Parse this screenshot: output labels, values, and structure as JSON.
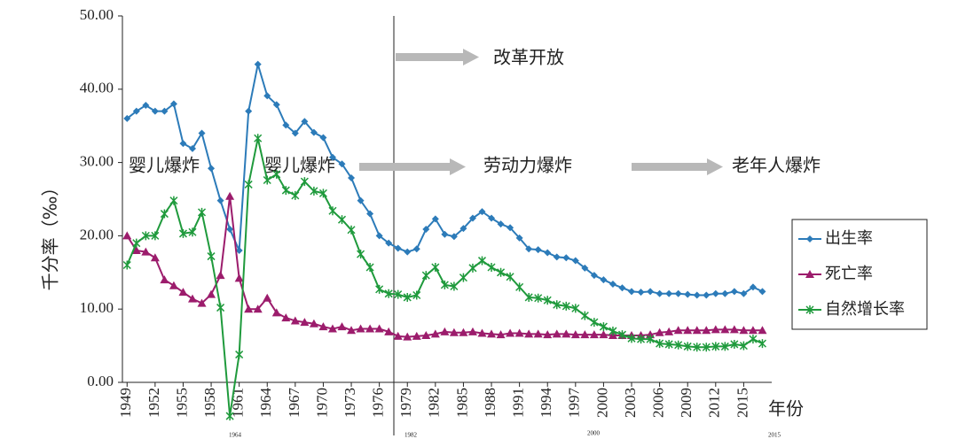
{
  "chart_data": {
    "type": "line",
    "y_label": "千分率（‰）",
    "x_label": "年份",
    "x": [
      1949,
      1950,
      1951,
      1952,
      1953,
      1954,
      1955,
      1956,
      1957,
      1958,
      1959,
      1960,
      1961,
      1962,
      1963,
      1964,
      1965,
      1966,
      1967,
      1968,
      1969,
      1970,
      1971,
      1972,
      1973,
      1974,
      1975,
      1976,
      1977,
      1978,
      1979,
      1980,
      1981,
      1982,
      1983,
      1984,
      1985,
      1986,
      1987,
      1988,
      1989,
      1990,
      1991,
      1992,
      1993,
      1994,
      1995,
      1996,
      1997,
      1998,
      1999,
      2000,
      2001,
      2002,
      2003,
      2004,
      2005,
      2006,
      2007,
      2008,
      2009,
      2010,
      2011,
      2012,
      2013,
      2014,
      2015,
      2016,
      2017
    ],
    "series": [
      {
        "name": "出生率",
        "color": "#2c7bb9",
        "marker": "diamond",
        "values": [
          36.0,
          37.0,
          37.8,
          37.0,
          37.0,
          38.0,
          32.6,
          31.9,
          34.0,
          29.2,
          24.8,
          20.9,
          18.0,
          37.0,
          43.4,
          39.1,
          37.9,
          35.1,
          34.0,
          35.6,
          34.1,
          33.4,
          30.7,
          29.8,
          27.9,
          24.8,
          23.0,
          20.0,
          19.0,
          18.3,
          17.8,
          18.2,
          20.9,
          22.3,
          20.2,
          19.9,
          21.0,
          22.4,
          23.3,
          22.4,
          21.6,
          21.1,
          19.7,
          18.2,
          18.1,
          17.7,
          17.1,
          17.0,
          16.6,
          15.6,
          14.6,
          14.0,
          13.4,
          12.9,
          12.4,
          12.3,
          12.4,
          12.1,
          12.1,
          12.1,
          12.0,
          11.9,
          11.9,
          12.1,
          12.1,
          12.4,
          12.1,
          13.0,
          12.4
        ]
      },
      {
        "name": "死亡率",
        "color": "#9c1c6c",
        "marker": "triangle",
        "values": [
          20.0,
          18.0,
          17.8,
          17.0,
          14.0,
          13.2,
          12.3,
          11.4,
          10.8,
          12.0,
          14.6,
          25.4,
          14.2,
          10.0,
          10.0,
          11.5,
          9.5,
          8.8,
          8.4,
          8.2,
          8.0,
          7.6,
          7.3,
          7.6,
          7.1,
          7.3,
          7.3,
          7.3,
          6.9,
          6.3,
          6.2,
          6.3,
          6.4,
          6.6,
          6.9,
          6.8,
          6.8,
          6.9,
          6.7,
          6.6,
          6.5,
          6.7,
          6.7,
          6.6,
          6.6,
          6.5,
          6.6,
          6.6,
          6.5,
          6.5,
          6.5,
          6.5,
          6.4,
          6.4,
          6.4,
          6.4,
          6.5,
          6.8,
          6.9,
          7.1,
          7.1,
          7.1,
          7.1,
          7.2,
          7.2,
          7.2,
          7.1,
          7.1,
          7.1
        ]
      },
      {
        "name": "自然增长率",
        "color": "#1f9a3c",
        "marker": "star",
        "values": [
          16.0,
          19.0,
          20.0,
          20.0,
          23.0,
          24.8,
          20.3,
          20.5,
          23.2,
          17.2,
          10.2,
          -4.6,
          3.8,
          27.0,
          33.3,
          27.6,
          28.4,
          26.2,
          25.5,
          27.4,
          26.1,
          25.8,
          23.4,
          22.2,
          20.8,
          17.5,
          15.7,
          12.7,
          12.1,
          12.0,
          11.6,
          11.9,
          14.6,
          15.7,
          13.3,
          13.1,
          14.3,
          15.6,
          16.6,
          15.7,
          15.0,
          14.4,
          13.0,
          11.6,
          11.5,
          11.2,
          10.6,
          10.4,
          10.1,
          9.1,
          8.2,
          7.6,
          7.0,
          6.5,
          6.0,
          5.9,
          5.9,
          5.3,
          5.2,
          5.1,
          4.9,
          4.8,
          4.8,
          4.9,
          4.9,
          5.2,
          5.0,
          5.9,
          5.3
        ]
      }
    ],
    "xlim": [
      1948.5,
      2018
    ],
    "xticks": [
      1949,
      1952,
      1955,
      1958,
      1961,
      1964,
      1967,
      1970,
      1973,
      1976,
      1979,
      1982,
      1985,
      1988,
      1991,
      1994,
      1997,
      2000,
      2003,
      2006,
      2009,
      2012,
      2015
    ],
    "ylim": [
      0,
      50
    ],
    "yticks": [
      {
        "value": 0,
        "label": "0.00"
      },
      {
        "value": 10,
        "label": "10.00"
      },
      {
        "value": 20,
        "label": "20.00"
      },
      {
        "value": 30,
        "label": "30.00"
      },
      {
        "value": 40,
        "label": "40.00"
      },
      {
        "value": 50,
        "label": "50.00"
      }
    ],
    "annotations": [
      "婴儿爆炸",
      "婴儿爆炸",
      "改革开放",
      "劳动力爆炸",
      "老年人爆炸"
    ],
    "small_labels": [
      "1964",
      "1982",
      "2000",
      "2015"
    ],
    "legend": "right"
  }
}
